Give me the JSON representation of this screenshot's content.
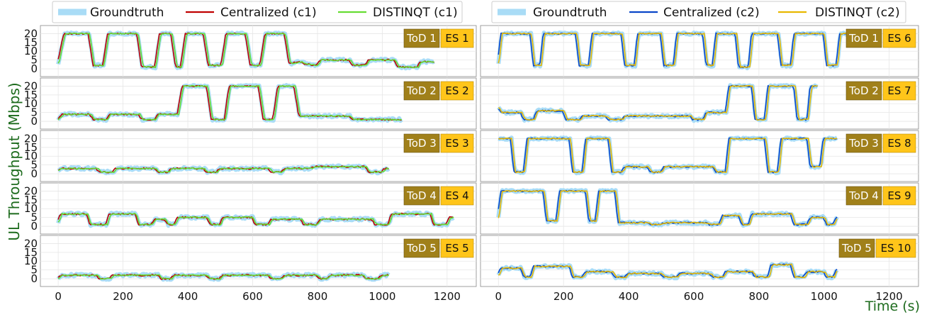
{
  "figure": {
    "ylabel": "UL Throughput (Mbps)",
    "xlabel": "Time (s)",
    "colors": {
      "groundtruth": "#a9dcf6",
      "centralized_c1": "#c00000",
      "distinqt_c1": "#66dd33",
      "centralized_c2": "#0a46c8",
      "distinqt_c2": "#e8b800",
      "tod_tag": "#a0801a",
      "es_tag": "#ffc51a",
      "label_green": "#1d6b1d"
    }
  },
  "legends": {
    "left": [
      "Groundtruth",
      "Centralized (c1)",
      "DISTINQT (c1)"
    ],
    "right": [
      "Groundtruth",
      "Centralized (c2)",
      "DISTINQT (c2)"
    ]
  },
  "chart_data": {
    "type": "line",
    "x_ticks": [
      "0",
      "200",
      "400",
      "600",
      "800",
      "1000",
      "1200"
    ],
    "y_ticks": [
      "0",
      "5",
      "10",
      "15",
      "20"
    ],
    "xlim": [
      -55,
      1290
    ],
    "ylim": [
      -2,
      23
    ],
    "grid": true,
    "panels": [
      {
        "tod": "ToD 1",
        "es": "ES 1",
        "column": "left",
        "row": 1,
        "end": 1160,
        "pattern": [
          [
            0,
            3
          ],
          [
            20,
            20
          ],
          [
            95,
            20
          ],
          [
            110,
            2
          ],
          [
            140,
            2
          ],
          [
            155,
            20
          ],
          [
            245,
            20
          ],
          [
            260,
            1
          ],
          [
            300,
            1
          ],
          [
            315,
            20
          ],
          [
            350,
            20
          ],
          [
            365,
            1
          ],
          [
            380,
            1
          ],
          [
            395,
            20
          ],
          [
            450,
            20
          ],
          [
            465,
            2
          ],
          [
            505,
            2
          ],
          [
            520,
            20
          ],
          [
            580,
            20
          ],
          [
            595,
            2
          ],
          [
            625,
            2
          ],
          [
            640,
            20
          ],
          [
            700,
            20
          ],
          [
            715,
            3
          ],
          [
            750,
            4
          ],
          [
            760,
            3
          ],
          [
            800,
            2
          ],
          [
            810,
            5
          ],
          [
            900,
            5
          ],
          [
            910,
            2
          ],
          [
            950,
            2
          ],
          [
            960,
            5
          ],
          [
            1040,
            5
          ],
          [
            1050,
            1
          ],
          [
            1110,
            1
          ],
          [
            1120,
            4
          ],
          [
            1160,
            4
          ]
        ]
      },
      {
        "tod": "ToD 2",
        "es": "ES 2",
        "column": "left",
        "row": 2,
        "end": 1060,
        "pattern": [
          [
            0,
            1
          ],
          [
            15,
            4
          ],
          [
            100,
            4
          ],
          [
            110,
            1
          ],
          [
            150,
            1
          ],
          [
            160,
            4
          ],
          [
            250,
            4
          ],
          [
            260,
            1
          ],
          [
            300,
            1
          ],
          [
            310,
            4
          ],
          [
            370,
            4
          ],
          [
            385,
            20
          ],
          [
            460,
            20
          ],
          [
            475,
            1
          ],
          [
            515,
            1
          ],
          [
            530,
            20
          ],
          [
            620,
            20
          ],
          [
            635,
            1
          ],
          [
            665,
            1
          ],
          [
            680,
            20
          ],
          [
            730,
            20
          ],
          [
            745,
            3
          ],
          [
            900,
            3
          ],
          [
            910,
            1
          ],
          [
            1060,
            1
          ]
        ]
      },
      {
        "tod": "ToD 3",
        "es": "ES 3",
        "column": "left",
        "row": 3,
        "end": 1020,
        "pattern": [
          [
            0,
            2
          ],
          [
            10,
            3
          ],
          [
            120,
            3
          ],
          [
            130,
            1
          ],
          [
            170,
            1
          ],
          [
            180,
            3
          ],
          [
            300,
            3
          ],
          [
            310,
            1
          ],
          [
            340,
            1
          ],
          [
            350,
            3
          ],
          [
            450,
            3
          ],
          [
            460,
            1
          ],
          [
            490,
            1
          ],
          [
            500,
            3
          ],
          [
            650,
            3
          ],
          [
            660,
            1
          ],
          [
            690,
            1
          ],
          [
            700,
            3
          ],
          [
            780,
            3
          ],
          [
            790,
            4
          ],
          [
            950,
            4
          ],
          [
            960,
            1
          ],
          [
            1000,
            1
          ],
          [
            1010,
            3
          ],
          [
            1020,
            3
          ]
        ]
      },
      {
        "tod": "ToD 4",
        "es": "ES 4",
        "column": "left",
        "row": 4,
        "end": 1220,
        "pattern": [
          [
            0,
            2
          ],
          [
            10,
            7
          ],
          [
            90,
            7
          ],
          [
            100,
            1
          ],
          [
            150,
            1
          ],
          [
            160,
            7
          ],
          [
            240,
            7
          ],
          [
            250,
            1
          ],
          [
            290,
            1
          ],
          [
            300,
            4
          ],
          [
            330,
            4
          ],
          [
            340,
            1
          ],
          [
            360,
            1
          ],
          [
            370,
            5
          ],
          [
            460,
            5
          ],
          [
            470,
            1
          ],
          [
            500,
            1
          ],
          [
            510,
            5
          ],
          [
            600,
            5
          ],
          [
            610,
            1
          ],
          [
            650,
            1
          ],
          [
            660,
            4
          ],
          [
            750,
            4
          ],
          [
            760,
            1
          ],
          [
            800,
            1
          ],
          [
            810,
            4
          ],
          [
            970,
            4
          ],
          [
            980,
            1
          ],
          [
            1020,
            1
          ],
          [
            1030,
            7
          ],
          [
            1150,
            7
          ],
          [
            1160,
            1
          ],
          [
            1200,
            1
          ],
          [
            1210,
            5
          ],
          [
            1220,
            5
          ]
        ]
      },
      {
        "tod": "ToD 5",
        "es": "ES 5",
        "column": "left",
        "row": 5,
        "end": 1020,
        "pattern": [
          [
            0,
            0
          ],
          [
            10,
            2
          ],
          [
            120,
            2
          ],
          [
            130,
            0
          ],
          [
            160,
            0
          ],
          [
            170,
            2
          ],
          [
            310,
            2
          ],
          [
            320,
            0
          ],
          [
            350,
            0
          ],
          [
            360,
            2
          ],
          [
            460,
            2
          ],
          [
            470,
            0
          ],
          [
            500,
            0
          ],
          [
            510,
            2
          ],
          [
            650,
            2
          ],
          [
            660,
            0
          ],
          [
            690,
            0
          ],
          [
            700,
            2
          ],
          [
            800,
            2
          ],
          [
            810,
            0
          ],
          [
            830,
            0
          ],
          [
            840,
            2
          ],
          [
            940,
            2
          ],
          [
            950,
            0
          ],
          [
            990,
            0
          ],
          [
            1000,
            2
          ],
          [
            1020,
            2
          ]
        ]
      },
      {
        "tod": "ToD 1",
        "es": "ES 6",
        "column": "right",
        "row": 1,
        "end": 1080,
        "pattern": [
          [
            0,
            3
          ],
          [
            10,
            20
          ],
          [
            100,
            20
          ],
          [
            110,
            2
          ],
          [
            130,
            2
          ],
          [
            140,
            20
          ],
          [
            240,
            20
          ],
          [
            250,
            2
          ],
          [
            280,
            2
          ],
          [
            290,
            20
          ],
          [
            380,
            20
          ],
          [
            390,
            2
          ],
          [
            420,
            2
          ],
          [
            430,
            20
          ],
          [
            500,
            20
          ],
          [
            510,
            2
          ],
          [
            540,
            2
          ],
          [
            550,
            20
          ],
          [
            630,
            20
          ],
          [
            640,
            2
          ],
          [
            660,
            2
          ],
          [
            670,
            20
          ],
          [
            730,
            20
          ],
          [
            740,
            1
          ],
          [
            770,
            1
          ],
          [
            780,
            20
          ],
          [
            860,
            20
          ],
          [
            870,
            2
          ],
          [
            900,
            2
          ],
          [
            910,
            20
          ],
          [
            1000,
            20
          ],
          [
            1010,
            2
          ],
          [
            1040,
            2
          ],
          [
            1050,
            20
          ],
          [
            1080,
            20
          ]
        ]
      },
      {
        "tod": "ToD 2",
        "es": "ES 7",
        "column": "right",
        "row": 2,
        "end": 980,
        "pattern": [
          [
            0,
            8
          ],
          [
            10,
            5
          ],
          [
            70,
            5
          ],
          [
            80,
            1
          ],
          [
            110,
            1
          ],
          [
            120,
            6
          ],
          [
            200,
            6
          ],
          [
            210,
            1
          ],
          [
            250,
            1
          ],
          [
            260,
            3
          ],
          [
            330,
            3
          ],
          [
            340,
            1
          ],
          [
            380,
            1
          ],
          [
            390,
            3
          ],
          [
            590,
            3
          ],
          [
            600,
            1
          ],
          [
            630,
            1
          ],
          [
            640,
            5
          ],
          [
            700,
            5
          ],
          [
            710,
            20
          ],
          [
            780,
            20
          ],
          [
            790,
            1
          ],
          [
            820,
            1
          ],
          [
            830,
            20
          ],
          [
            910,
            20
          ],
          [
            920,
            1
          ],
          [
            950,
            1
          ],
          [
            960,
            20
          ],
          [
            980,
            20
          ]
        ]
      },
      {
        "tod": "ToD 3",
        "es": "ES 8",
        "column": "right",
        "row": 3,
        "end": 1040,
        "pattern": [
          [
            0,
            20
          ],
          [
            40,
            20
          ],
          [
            50,
            1
          ],
          [
            80,
            1
          ],
          [
            90,
            20
          ],
          [
            220,
            20
          ],
          [
            230,
            1
          ],
          [
            260,
            1
          ],
          [
            270,
            20
          ],
          [
            340,
            20
          ],
          [
            350,
            1
          ],
          [
            380,
            1
          ],
          [
            390,
            4
          ],
          [
            460,
            4
          ],
          [
            470,
            1
          ],
          [
            500,
            1
          ],
          [
            510,
            4
          ],
          [
            660,
            4
          ],
          [
            670,
            1
          ],
          [
            700,
            1
          ],
          [
            710,
            20
          ],
          [
            820,
            20
          ],
          [
            830,
            1
          ],
          [
            860,
            1
          ],
          [
            870,
            20
          ],
          [
            950,
            20
          ],
          [
            960,
            4
          ],
          [
            990,
            4
          ],
          [
            1000,
            20
          ],
          [
            1040,
            20
          ]
        ]
      },
      {
        "tod": "ToD 4",
        "es": "ES 9",
        "column": "right",
        "row": 4,
        "end": 1040,
        "pattern": [
          [
            0,
            5
          ],
          [
            10,
            20
          ],
          [
            140,
            20
          ],
          [
            150,
            3
          ],
          [
            180,
            3
          ],
          [
            190,
            20
          ],
          [
            270,
            20
          ],
          [
            280,
            3
          ],
          [
            300,
            3
          ],
          [
            310,
            20
          ],
          [
            360,
            20
          ],
          [
            370,
            2
          ],
          [
            460,
            2
          ],
          [
            470,
            1
          ],
          [
            500,
            1
          ],
          [
            510,
            2
          ],
          [
            640,
            2
          ],
          [
            650,
            1
          ],
          [
            680,
            1
          ],
          [
            690,
            6
          ],
          [
            740,
            6
          ],
          [
            750,
            1
          ],
          [
            770,
            1
          ],
          [
            780,
            7
          ],
          [
            900,
            7
          ],
          [
            910,
            1
          ],
          [
            950,
            1
          ],
          [
            960,
            5
          ],
          [
            1000,
            5
          ],
          [
            1010,
            1
          ],
          [
            1030,
            1
          ],
          [
            1040,
            5
          ]
        ]
      },
      {
        "tod": "ToD 5",
        "es": "ES 10",
        "column": "right",
        "row": 5,
        "end": 1040,
        "pattern": [
          [
            0,
            2
          ],
          [
            10,
            6
          ],
          [
            70,
            6
          ],
          [
            80,
            1
          ],
          [
            100,
            1
          ],
          [
            110,
            7
          ],
          [
            220,
            7
          ],
          [
            230,
            1
          ],
          [
            260,
            1
          ],
          [
            270,
            4
          ],
          [
            350,
            4
          ],
          [
            360,
            1
          ],
          [
            390,
            1
          ],
          [
            400,
            3
          ],
          [
            500,
            3
          ],
          [
            510,
            1
          ],
          [
            550,
            1
          ],
          [
            560,
            3
          ],
          [
            650,
            3
          ],
          [
            660,
            1
          ],
          [
            690,
            1
          ],
          [
            700,
            4
          ],
          [
            780,
            4
          ],
          [
            790,
            1
          ],
          [
            830,
            1
          ],
          [
            840,
            8
          ],
          [
            900,
            8
          ],
          [
            910,
            1
          ],
          [
            940,
            1
          ],
          [
            950,
            4
          ],
          [
            1000,
            4
          ],
          [
            1010,
            1
          ],
          [
            1030,
            1
          ],
          [
            1040,
            5
          ]
        ]
      }
    ]
  }
}
